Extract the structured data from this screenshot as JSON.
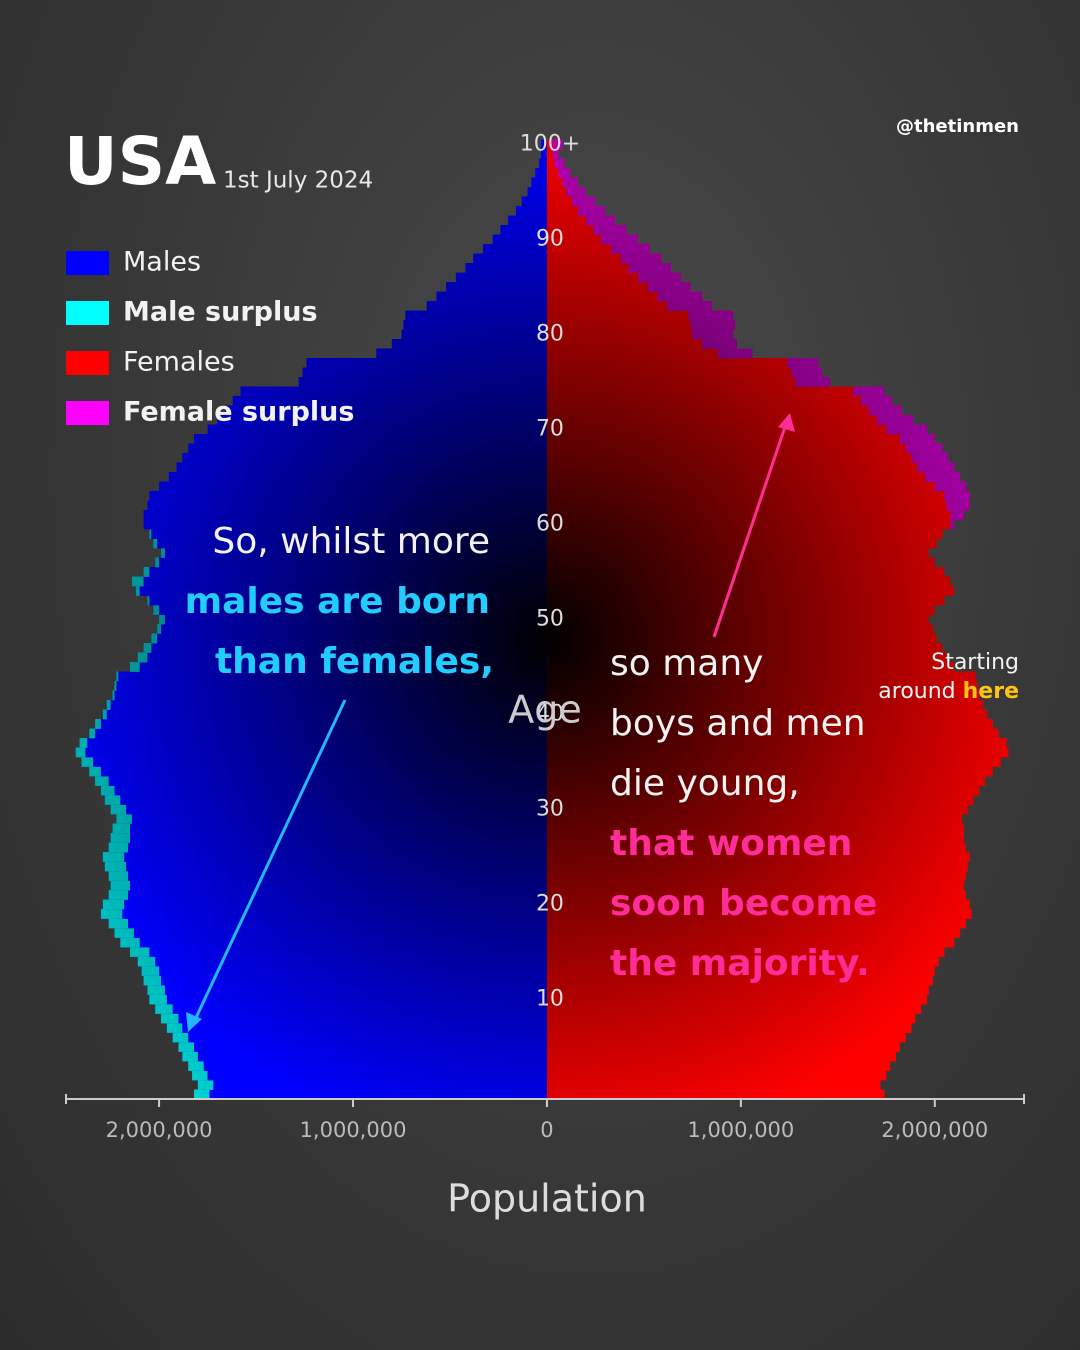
{
  "chart_data": {
    "type": "pyramid",
    "title": "USA",
    "subtitle": "1st July 2024",
    "credit": "@thetinmen",
    "x_label": "Population",
    "y_label": "Age",
    "categories": [
      null,
      null,
      null,
      null,
      null,
      null,
      null,
      null,
      null,
      null,
      "10",
      null,
      null,
      null,
      null,
      null,
      null,
      null,
      null,
      null,
      "20",
      null,
      null,
      null,
      null,
      null,
      null,
      null,
      null,
      null,
      "30",
      null,
      null,
      null,
      null,
      null,
      null,
      null,
      null,
      null,
      "40",
      null,
      null,
      null,
      null,
      null,
      null,
      null,
      null,
      null,
      "50",
      null,
      null,
      null,
      null,
      null,
      null,
      null,
      null,
      null,
      "60",
      null,
      null,
      null,
      null,
      null,
      null,
      null,
      null,
      null,
      "70",
      null,
      null,
      null,
      null,
      null,
      null,
      null,
      null,
      null,
      "80",
      null,
      null,
      null,
      null,
      null,
      null,
      null,
      null,
      null,
      "90",
      null,
      null,
      null,
      null,
      null,
      null,
      null,
      null,
      null,
      "100+"
    ],
    "series": [
      {
        "name": "Males",
        "color": "#0000ff",
        "surplus_name": "Male surplus",
        "surplus_color": "#00ffff",
        "side": "left",
        "values": [
          1820000,
          1800000,
          1830000,
          1850000,
          1880000,
          1900000,
          1930000,
          1960000,
          1990000,
          2020000,
          2050000,
          2060000,
          2080000,
          2090000,
          2110000,
          2150000,
          2200000,
          2230000,
          2260000,
          2300000,
          2290000,
          2260000,
          2250000,
          2260000,
          2280000,
          2290000,
          2260000,
          2250000,
          2240000,
          2220000,
          2250000,
          2280000,
          2300000,
          2330000,
          2360000,
          2400000,
          2430000,
          2410000,
          2360000,
          2330000,
          2290000,
          2270000,
          2240000,
          2230000,
          2220000,
          2150000,
          2110000,
          2080000,
          2040000,
          2010000,
          2000000,
          2030000,
          2060000,
          2120000,
          2140000,
          2080000,
          2020000,
          1990000,
          2030000,
          2050000,
          2080000,
          2080000,
          2060000,
          2050000,
          2000000,
          1950000,
          1910000,
          1880000,
          1850000,
          1820000,
          1750000,
          1700000,
          1660000,
          1620000,
          1580000,
          1280000,
          1260000,
          1240000,
          880000,
          800000,
          750000,
          740000,
          730000,
          620000,
          570000,
          520000,
          470000,
          420000,
          380000,
          330000,
          280000,
          240000,
          200000,
          160000,
          130000,
          100000,
          80000,
          60000,
          40000,
          30000,
          30000
        ]
      },
      {
        "name": "Females",
        "color": "#ff0000",
        "surplus_name": "Female surplus",
        "surplus_color": "#ff00ff",
        "side": "right",
        "values": [
          1740000,
          1720000,
          1750000,
          1770000,
          1800000,
          1820000,
          1850000,
          1880000,
          1900000,
          1930000,
          1960000,
          1970000,
          1990000,
          2000000,
          2020000,
          2050000,
          2100000,
          2130000,
          2160000,
          2190000,
          2180000,
          2160000,
          2150000,
          2160000,
          2170000,
          2180000,
          2160000,
          2150000,
          2150000,
          2140000,
          2170000,
          2200000,
          2230000,
          2260000,
          2300000,
          2340000,
          2380000,
          2370000,
          2330000,
          2300000,
          2270000,
          2250000,
          2230000,
          2220000,
          2210000,
          2100000,
          2060000,
          2040000,
          2010000,
          1990000,
          1970000,
          2000000,
          2050000,
          2100000,
          2080000,
          2050000,
          2000000,
          1970000,
          2010000,
          2040000,
          2100000,
          2150000,
          2180000,
          2180000,
          2160000,
          2130000,
          2100000,
          2070000,
          2040000,
          2000000,
          1960000,
          1890000,
          1830000,
          1780000,
          1740000,
          1460000,
          1420000,
          1400000,
          1060000,
          980000,
          960000,
          970000,
          960000,
          850000,
          800000,
          740000,
          690000,
          640000,
          590000,
          530000,
          470000,
          410000,
          350000,
          300000,
          250000,
          200000,
          160000,
          120000,
          90000,
          60000,
          80000
        ]
      }
    ],
    "xlim": [
      -2480000,
      2460000
    ],
    "xticks": [
      {
        "value": -2000000,
        "label": "2,000,000"
      },
      {
        "value": -1000000,
        "label": "1,000,000"
      },
      0,
      {
        "value": 1000000,
        "label": "1,000,000"
      },
      {
        "value": 2000000,
        "label": "2,000,000"
      }
    ],
    "annotations": [
      {
        "text": "So, whilst more",
        "color": "#f2f2f2"
      },
      {
        "text": "males are born",
        "color": "#22ccff"
      },
      {
        "text": "than females,",
        "color": "#22ccff"
      },
      {
        "text": "so many",
        "color": "#f2f2f2"
      },
      {
        "text": "boys and men",
        "color": "#f2f2f2"
      },
      {
        "text": "die young,",
        "color": "#f2f2f2"
      },
      {
        "text": "that women",
        "color": "#ff2d96"
      },
      {
        "text": "soon become",
        "color": "#ff2d96"
      },
      {
        "text": "the majority.",
        "color": "#ff2d96"
      },
      {
        "text": "Starting",
        "color": "#f2f2f2"
      },
      {
        "text": "around",
        "color": "#f2f2f2"
      },
      {
        "text": "here",
        "color": "#ffc414"
      }
    ]
  }
}
